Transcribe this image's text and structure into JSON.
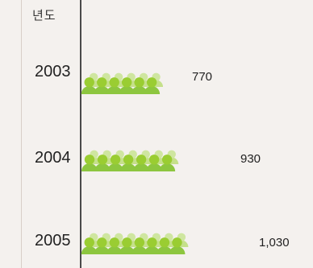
{
  "chart_data": {
    "type": "bar",
    "column_header": "년도",
    "categories": [
      "2003",
      "2004",
      "2005"
    ],
    "values": [
      770,
      930,
      1030
    ],
    "value_labels": [
      "770",
      "930",
      "1,030"
    ],
    "mark": "people-pictogram",
    "colors": {
      "body_front": "#8dc63f",
      "body_back": "#c5e08a",
      "head_front": "#9acd32",
      "head_back": "#cfe6a0",
      "axis": "#4a4a4a",
      "background": "#f4f1ee"
    }
  }
}
